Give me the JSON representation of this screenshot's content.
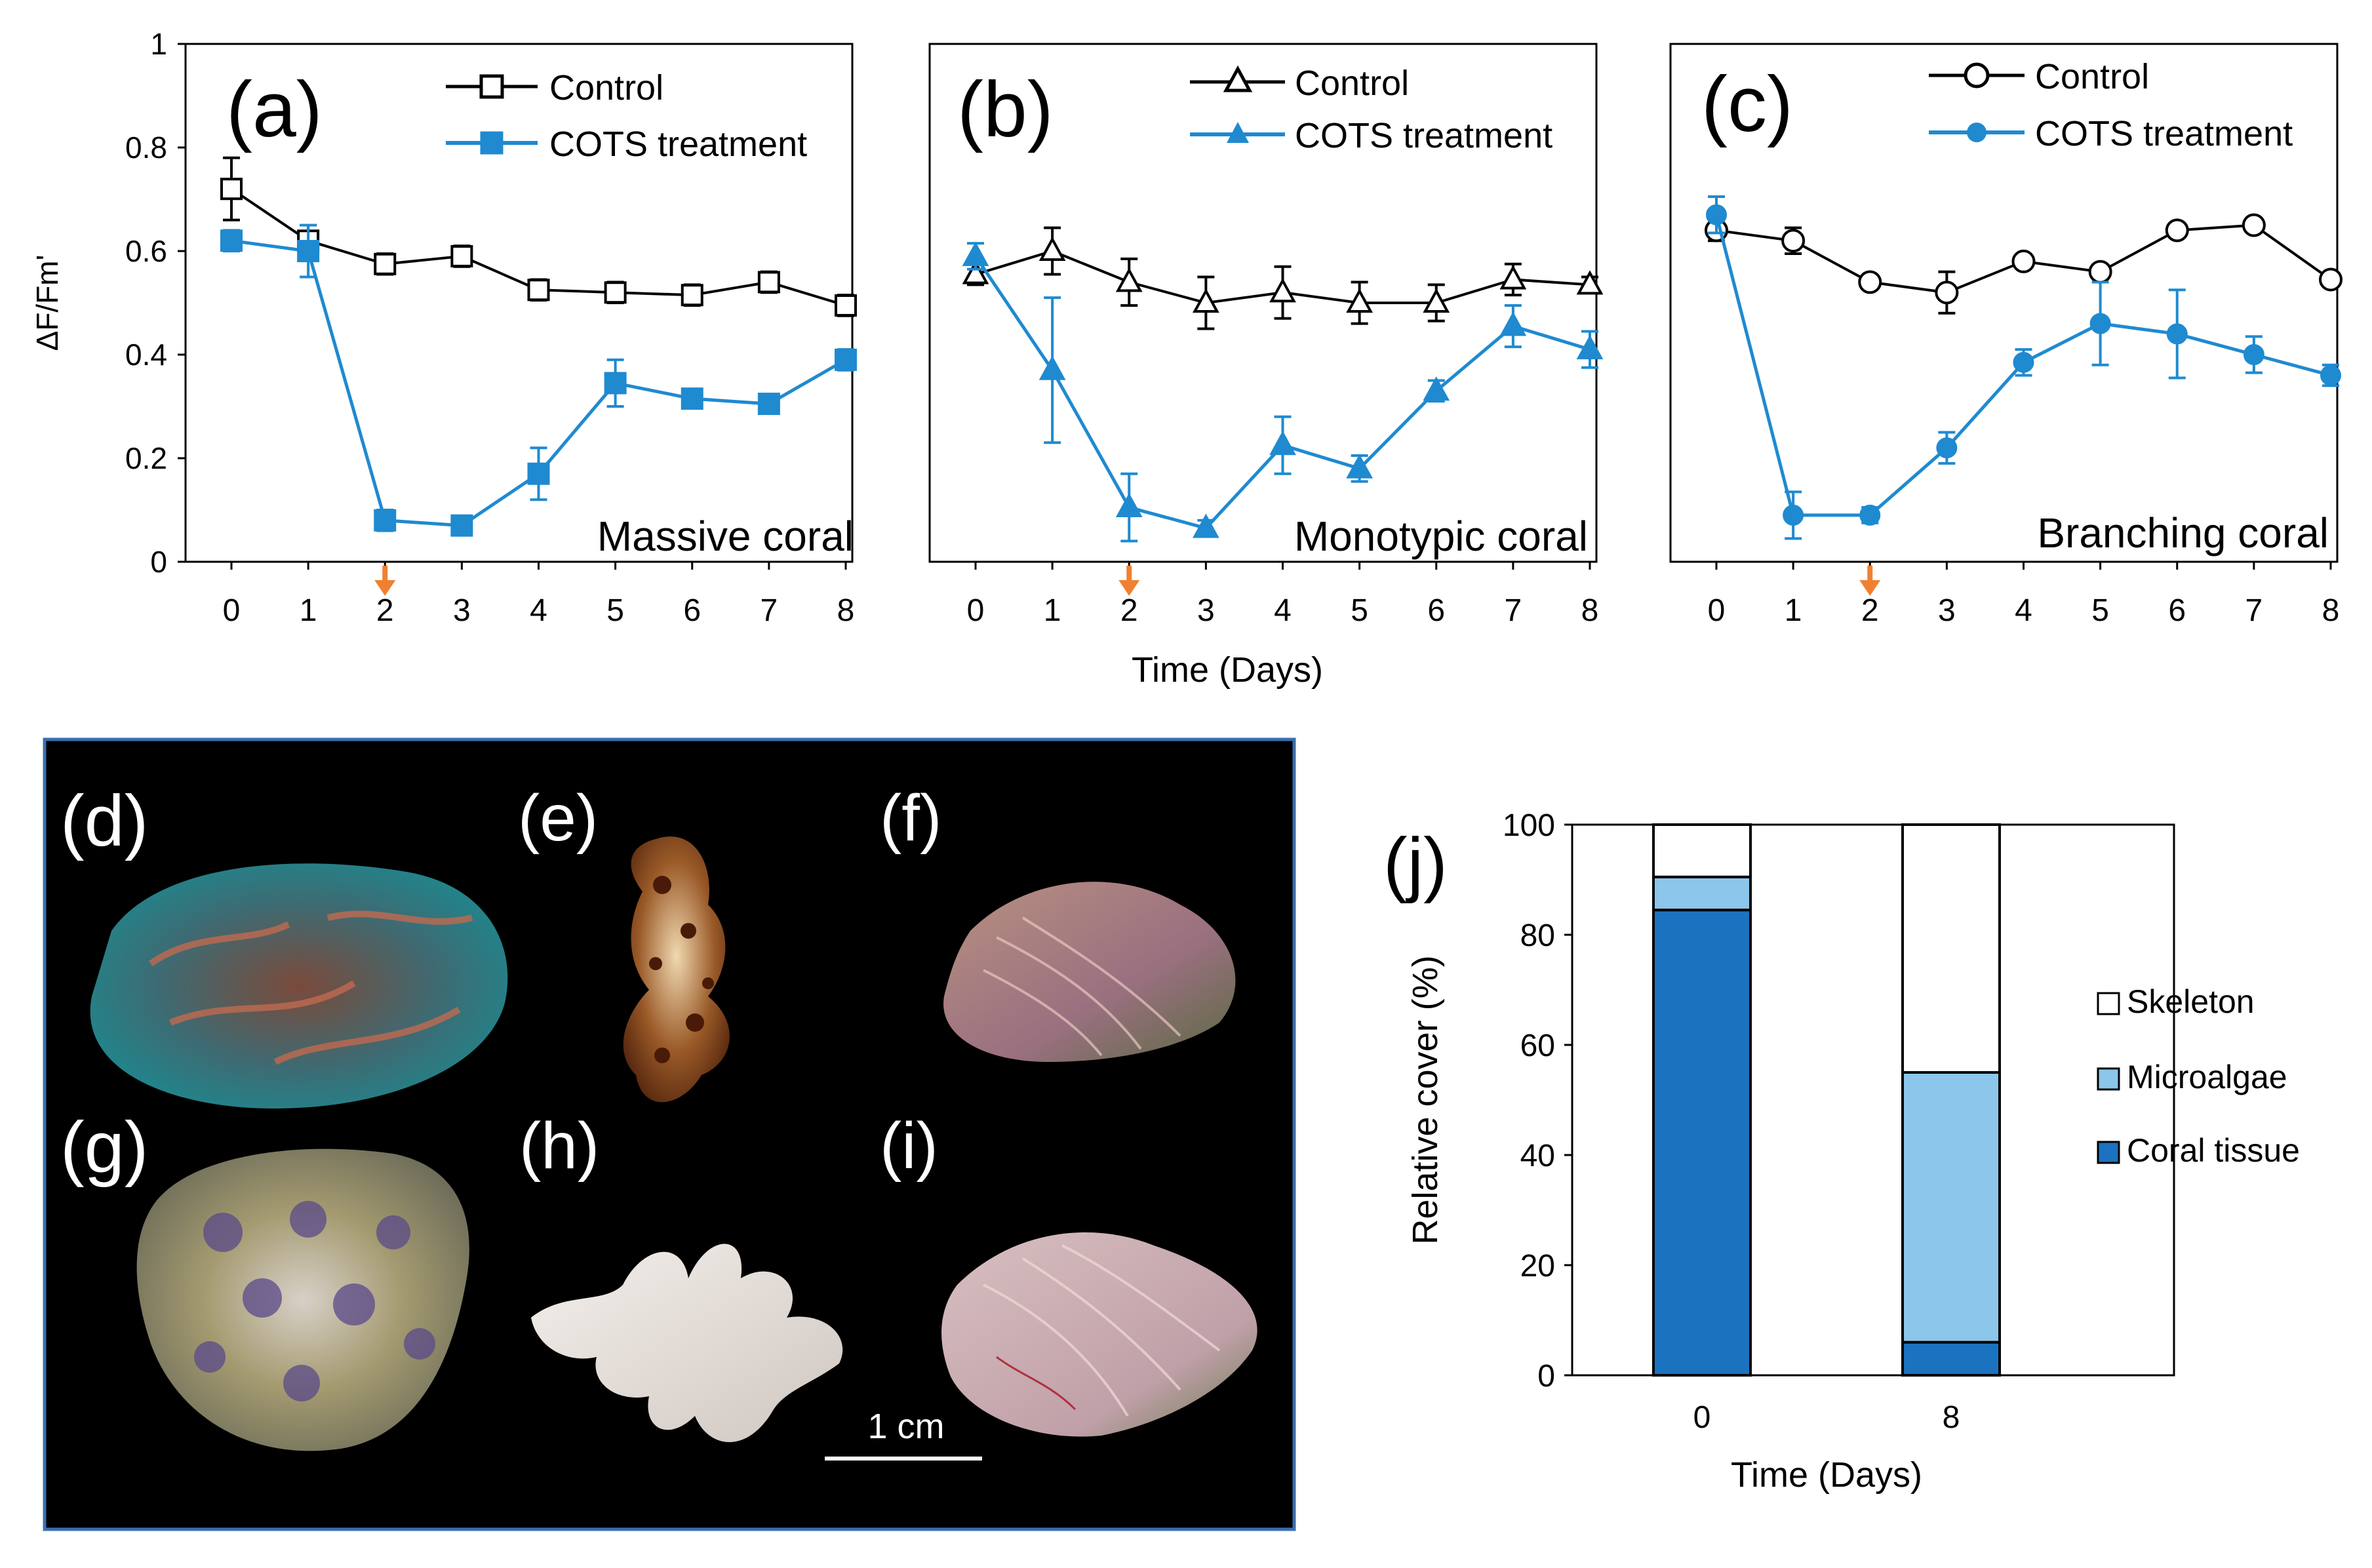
{
  "colors": {
    "control": "#000000",
    "treatment": "#1f8ad0",
    "arrow": "#f08030",
    "photo_bg": "#000000",
    "photo_border": "#3a6fb0",
    "skeleton": "#ffffff",
    "microalgae": "#8cc6ea",
    "coral_tissue": "#1b73c0"
  },
  "shared": {
    "ylabel": "ΔF/Fm'",
    "xlabel": "Time (Days)"
  },
  "chart_data": [
    {
      "type": "line",
      "panel_label": "(a)",
      "corner_label": "Massive coral",
      "x": [
        0,
        1,
        2,
        3,
        4,
        5,
        6,
        7,
        8
      ],
      "ylim": [
        0,
        1
      ],
      "yticks": [
        "0",
        "0.2",
        "0.4",
        "0.6",
        "0.8",
        "1"
      ],
      "marker_shape": "square",
      "arrow_at_day": 2,
      "series": [
        {
          "name": "Control",
          "role": "control",
          "values": [
            0.72,
            0.62,
            0.575,
            0.59,
            0.525,
            0.52,
            0.515,
            0.54,
            0.495
          ],
          "errors": [
            0.06,
            0.03,
            0.02,
            0.02,
            0.02,
            0.02,
            0.02,
            0.02,
            0.02
          ]
        },
        {
          "name": "COTS treatment",
          "role": "treatment",
          "values": [
            0.62,
            0.6,
            0.08,
            0.07,
            0.17,
            0.345,
            0.315,
            0.305,
            0.39
          ],
          "errors": [
            0.02,
            0.05,
            0.02,
            0.01,
            0.05,
            0.045,
            0.015,
            0.015,
            0.02
          ]
        }
      ]
    },
    {
      "type": "line",
      "panel_label": "(b)",
      "corner_label": "Monotypic coral",
      "x": [
        0,
        1,
        2,
        3,
        4,
        5,
        6,
        7,
        8
      ],
      "ylim": [
        0,
        1
      ],
      "marker_shape": "triangle",
      "arrow_at_day": 2,
      "series": [
        {
          "name": "Control",
          "role": "control",
          "values": [
            0.555,
            0.6,
            0.54,
            0.5,
            0.52,
            0.5,
            0.5,
            0.545,
            0.535
          ],
          "errors": [
            0.02,
            0.045,
            0.045,
            0.05,
            0.05,
            0.04,
            0.035,
            0.03,
            0.015
          ]
        },
        {
          "name": "COTS treatment",
          "role": "treatment",
          "values": [
            0.59,
            0.37,
            0.105,
            0.065,
            0.225,
            0.18,
            0.33,
            0.455,
            0.41
          ],
          "errors": [
            0.025,
            0.14,
            0.065,
            0.015,
            0.055,
            0.025,
            0.02,
            0.04,
            0.035
          ]
        }
      ]
    },
    {
      "type": "line",
      "panel_label": "(c)",
      "corner_label": "Branching coral",
      "x": [
        0,
        1,
        2,
        3,
        4,
        5,
        6,
        7,
        8
      ],
      "ylim": [
        0,
        1
      ],
      "marker_shape": "circle",
      "arrow_at_day": 2,
      "series": [
        {
          "name": "Control",
          "role": "control",
          "values": [
            0.64,
            0.62,
            0.54,
            0.52,
            0.58,
            0.56,
            0.64,
            0.65,
            0.545
          ],
          "errors": [
            0.02,
            0.025,
            0.01,
            0.04,
            0.01,
            0.01,
            0.01,
            0.01,
            0.01
          ]
        },
        {
          "name": "COTS treatment",
          "role": "treatment",
          "values": [
            0.67,
            0.09,
            0.09,
            0.22,
            0.385,
            0.46,
            0.44,
            0.4,
            0.36
          ],
          "errors": [
            0.035,
            0.045,
            0.015,
            0.03,
            0.025,
            0.08,
            0.085,
            0.035,
            0.02
          ]
        }
      ]
    },
    {
      "type": "bar",
      "stacked": true,
      "panel_label": "(j)",
      "categories": [
        "0",
        "8"
      ],
      "ylabel": "Relative cover (%)",
      "xlabel": "Time (Days)",
      "ylim": [
        0,
        100
      ],
      "yticks": [
        "0",
        "20",
        "40",
        "60",
        "80",
        "100"
      ],
      "legend_position": "right",
      "series": [
        {
          "name": "Coral tissue",
          "key": "coral_tissue",
          "values": [
            84.5,
            6
          ]
        },
        {
          "name": "Microalgae",
          "key": "microalgae",
          "values": [
            6,
            49
          ]
        },
        {
          "name": "Skeleton",
          "key": "skeleton",
          "values": [
            9.5,
            45
          ]
        }
      ]
    }
  ],
  "photo_panel": {
    "labels": [
      "(d)",
      "(e)",
      "(f)",
      "(g)",
      "(h)",
      "(i)"
    ],
    "scale_bar_label": "1 cm"
  }
}
